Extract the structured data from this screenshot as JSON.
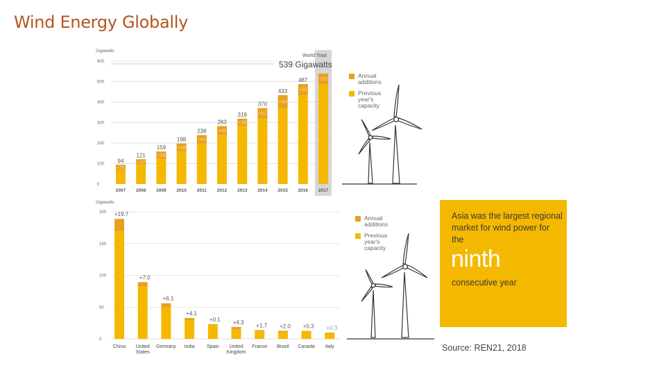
{
  "slide": {
    "title": "Wind Energy Globally",
    "source": "Source: REN21, 2018"
  },
  "colors": {
    "addition": "#e8a11c",
    "previous": "#f5b800",
    "panel": "#d6d7d8",
    "addition_label": "#f3d9a4",
    "info_box": "#f5b800"
  },
  "legend": {
    "annual_additions": "Annual additions",
    "previous_capacity": "Previous year's capacity"
  },
  "info_box": {
    "text": "Asia was the largest regional market for wind power for the",
    "highlight": "ninth",
    "subtext": "consecutive year"
  },
  "chart_data": [
    {
      "type": "bar",
      "stacked": true,
      "title": "World Total 539 Gigawatts",
      "title_line1": "World Total",
      "title_line2": "539 Gigawatts",
      "ylabel": "Gigawatts",
      "ylim": [
        0,
        600
      ],
      "yticks": [
        "0",
        "100",
        "200",
        "300",
        "400",
        "500",
        "600"
      ],
      "categories": [
        "2007",
        "2008",
        "2009",
        "2010",
        "2011",
        "2012",
        "2013",
        "2014",
        "2015",
        "2016",
        "2017"
      ],
      "series": [
        {
          "name": "Previous year's capacity",
          "values": [
            68,
            94,
            121,
            159,
            198,
            238,
            283,
            319,
            370,
            433,
            487
          ]
        },
        {
          "name": "Annual additions",
          "values": [
            26,
            27,
            38,
            39,
            41,
            45,
            36,
            52,
            64,
            55,
            52
          ]
        }
      ],
      "totals": [
        "94",
        "121",
        "159",
        "198",
        "238",
        "283",
        "319",
        "370",
        "433",
        "487",
        "539"
      ],
      "addition_labels": [
        "+26",
        "+27",
        "+38",
        "+39",
        "+41",
        "+45",
        "+36",
        "+52",
        "+64",
        "+55",
        "+52"
      ],
      "highlight_last": true
    },
    {
      "type": "bar",
      "stacked": true,
      "ylabel": "Gigawatts",
      "ylim": [
        0,
        200
      ],
      "yticks": [
        "0",
        "50",
        "100",
        "150",
        "200"
      ],
      "categories": [
        "China",
        "United States",
        "Germany",
        "India",
        "Spain",
        "United Kingdom",
        "France",
        "Brazil",
        "Canada",
        "Italy"
      ],
      "category_lines": [
        [
          "China"
        ],
        [
          "United",
          "States"
        ],
        [
          "Germany"
        ],
        [
          "India"
        ],
        [
          "Spain"
        ],
        [
          "United",
          "Kingdom"
        ],
        [
          "France"
        ],
        [
          "Brazil"
        ],
        [
          "Canada"
        ],
        [
          "Italy"
        ]
      ],
      "series": [
        {
          "name": "Previous year's capacity",
          "values": [
            169.1,
            82.3,
            50.0,
            28.7,
            23.0,
            14.5,
            12.1,
            10.7,
            12.2,
            9.5
          ]
        },
        {
          "name": "Annual additions",
          "values": [
            19.7,
            7.0,
            6.1,
            4.1,
            0.1,
            4.3,
            1.7,
            2.0,
            0.3,
            0.3
          ]
        }
      ],
      "addition_labels": [
        "+19.7",
        "+7.0",
        "+6.1",
        "+4.1",
        "+0.1",
        "+4.3",
        "+1.7",
        "+2.0",
        "+0.3",
        "+0.3"
      ]
    }
  ]
}
